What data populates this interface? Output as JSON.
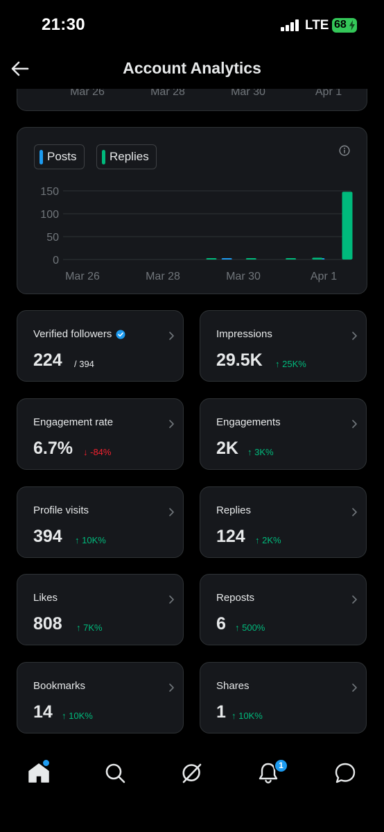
{
  "status_bar": {
    "time": "21:30",
    "network": "LTE",
    "battery": "68"
  },
  "header": {
    "title": "Account Analytics",
    "back_icon": "arrow-left-icon"
  },
  "top_chart_axis": [
    "Mar 26",
    "Mar 28",
    "Mar 30",
    "Apr 1"
  ],
  "legend": {
    "posts": "Posts",
    "replies": "Replies"
  },
  "colors": {
    "posts": "#1d9bf0",
    "replies": "#00ba7c",
    "negative": "#f4212e",
    "background": "#000000",
    "card": "#16181c"
  },
  "chart_data": {
    "type": "bar",
    "series": [
      {
        "name": "Posts",
        "values": [
          0,
          0,
          0,
          0,
          0,
          0,
          0,
          0,
          0,
          0,
          0,
          0,
          1,
          0,
          0,
          0,
          0,
          0,
          0,
          2,
          0
        ]
      },
      {
        "name": "Replies",
        "values": [
          0,
          0,
          0,
          0,
          0,
          0,
          0,
          0,
          0,
          0,
          1,
          0,
          0,
          2,
          0,
          0,
          1,
          0,
          4,
          0,
          148
        ]
      }
    ],
    "ylim": [
      0,
      150
    ],
    "yticks": [
      "150",
      "100",
      "50",
      "0"
    ],
    "xticks": [
      "Mar 26",
      "Mar 28",
      "Mar 30",
      "Apr 1"
    ],
    "grid": true
  },
  "stats": [
    {
      "label": "Verified followers",
      "value": "224",
      "secondary": "/ 394",
      "trend": "",
      "direction": "none"
    },
    {
      "label": "Impressions",
      "value": "29.5K",
      "secondary": "",
      "trend": "↑ 25K%",
      "direction": "up"
    },
    {
      "label": "Engagement rate",
      "value": "6.7%",
      "secondary": "",
      "trend": "↓ -84%",
      "direction": "down"
    },
    {
      "label": "Engagements",
      "value": "2K",
      "secondary": "",
      "trend": "↑ 3K%",
      "direction": "up"
    },
    {
      "label": "Profile visits",
      "value": "394",
      "secondary": "",
      "trend": "↑ 10K%",
      "direction": "up"
    },
    {
      "label": "Replies",
      "value": "124",
      "secondary": "",
      "trend": "↑ 2K%",
      "direction": "up"
    },
    {
      "label": "Likes",
      "value": "808",
      "secondary": "",
      "trend": "↑ 7K%",
      "direction": "up"
    },
    {
      "label": "Reposts",
      "value": "6",
      "secondary": "",
      "trend": "↑ 500%",
      "direction": "up"
    },
    {
      "label": "Bookmarks",
      "value": "14",
      "secondary": "",
      "trend": "↑ 10K%",
      "direction": "up"
    },
    {
      "label": "Shares",
      "value": "1",
      "secondary": "",
      "trend": "↑ 10K%",
      "direction": "up"
    }
  ],
  "bottom_nav": {
    "items": [
      "home-icon",
      "search-icon",
      "grok-icon",
      "notifications-icon",
      "messages-icon"
    ],
    "notification_count": "1"
  }
}
